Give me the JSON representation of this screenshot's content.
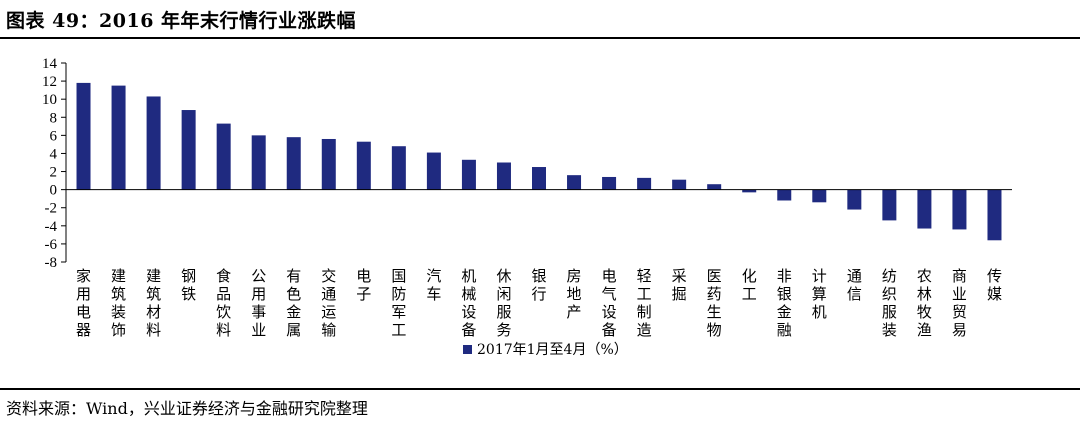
{
  "header": {
    "title": "图表 49：2016 年年末行情行业涨跌幅"
  },
  "footer": {
    "source": "资料来源：Wind，兴业证券经济与金融研究院整理"
  },
  "colors": {
    "bar": "#1f2a80"
  },
  "chart_data": {
    "type": "bar",
    "title": "",
    "xlabel": "",
    "ylabel": "",
    "ylim": [
      -8,
      14
    ],
    "yticks": [
      -8,
      -6,
      -4,
      -2,
      0,
      2,
      4,
      6,
      8,
      10,
      12,
      14
    ],
    "legend_position": "bottom",
    "categories": [
      "家用电器",
      "建筑装饰",
      "建筑材料",
      "钢铁",
      "食品饮料",
      "公用事业",
      "有色金属",
      "交通运输",
      "电子",
      "国防军工",
      "汽车",
      "机械设备",
      "休闲服务",
      "银行",
      "房地产",
      "电气设备",
      "轻工制造",
      "采掘",
      "医药生物",
      "化工",
      "非银金融",
      "计算机",
      "通信",
      "纺织服装",
      "农林牧渔",
      "商业贸易",
      "传媒"
    ],
    "series": [
      {
        "name": "2017年1月至4月（%）",
        "values": [
          11.8,
          11.5,
          10.3,
          8.8,
          7.3,
          6.0,
          5.8,
          5.6,
          5.3,
          4.8,
          4.1,
          3.3,
          3.0,
          2.5,
          1.6,
          1.4,
          1.3,
          1.1,
          0.6,
          -0.3,
          -1.2,
          -1.4,
          -2.2,
          -3.4,
          -4.3,
          -4.4,
          -5.6
        ]
      }
    ]
  }
}
